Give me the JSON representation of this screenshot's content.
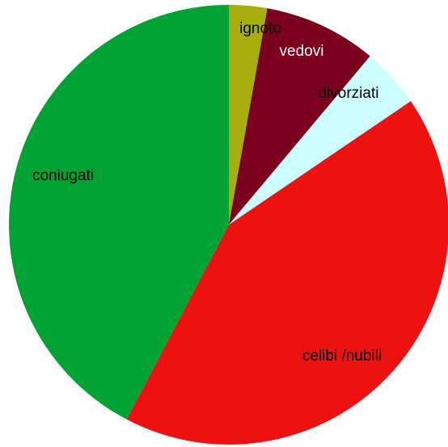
{
  "chart_data": {
    "type": "pie",
    "categories": [
      "ignoto",
      "vedovi",
      "divorziati",
      "celibi /nubili",
      "coniugati"
    ],
    "values": [
      2.8,
      8.3,
      4.4,
      42.2,
      42.3
    ],
    "colors": [
      "#a9ae0f",
      "#7b0020",
      "#ccffff",
      "#ee1111",
      "#00a333"
    ],
    "label_colors": [
      "#000000",
      "#ffffff",
      "#000000",
      "#000000",
      "#000000"
    ],
    "start_angle": 0,
    "direction": "clockwise"
  }
}
